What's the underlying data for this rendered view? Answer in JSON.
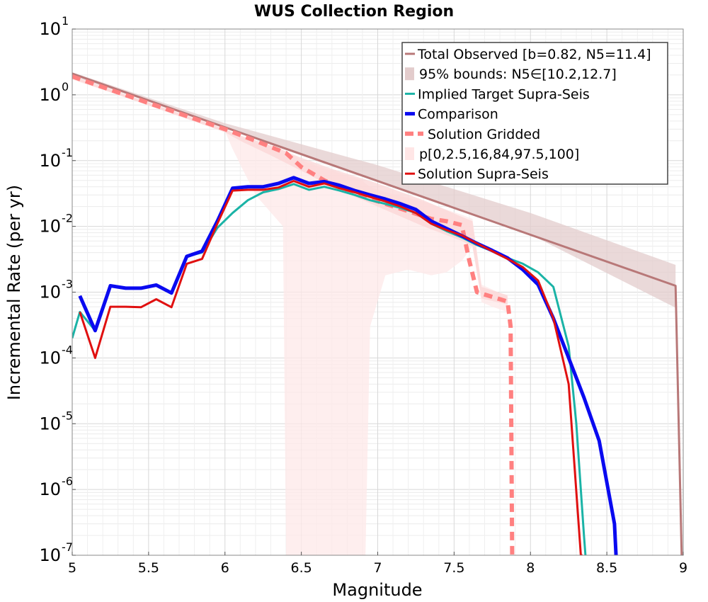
{
  "chart_data": {
    "type": "line",
    "title": "WUS Collection Region",
    "xlabel": "Magnitude",
    "ylabel": "Incremental Rate (per yr)",
    "xlim": [
      5,
      9
    ],
    "ylim": [
      1e-07,
      10
    ],
    "yscale": "log",
    "grid": true,
    "legend_position": "top-right",
    "x_ticks": [
      "5",
      "5.5",
      "6",
      "6.5",
      "7",
      "7.5",
      "8",
      "8.5",
      "9"
    ],
    "y_ticks": [
      {
        "base": "10",
        "exp": "-7",
        "value": 1e-07
      },
      {
        "base": "10",
        "exp": "-6",
        "value": 1e-06
      },
      {
        "base": "10",
        "exp": "-5",
        "value": 1e-05
      },
      {
        "base": "10",
        "exp": "-4",
        "value": 0.0001
      },
      {
        "base": "10",
        "exp": "-3",
        "value": 0.001
      },
      {
        "base": "10",
        "exp": "-2",
        "value": 0.01
      },
      {
        "base": "10",
        "exp": "-1",
        "value": 0.1
      },
      {
        "base": "10",
        "exp": "0",
        "value": 1
      },
      {
        "base": "10",
        "exp": "1",
        "value": 10
      }
    ],
    "legend": [
      {
        "label": "Total Observed [b=0.82, N5=11.4]",
        "style": "line",
        "color": "#b87878"
      },
      {
        "label": "95% bounds: N5∈[10.2,12.7]",
        "style": "band",
        "color": "#e3cccc"
      },
      {
        "label": "Implied Target Supra-Seis",
        "style": "line",
        "color": "#1ab3a6"
      },
      {
        "label": "Comparison",
        "style": "thick-line",
        "color": "#0a0af0"
      },
      {
        "label": "Solution Gridded",
        "style": "dashed",
        "color": "#ff8080"
      },
      {
        "label": "p[0,2.5,16,84,97.5,100]",
        "style": "band",
        "color": "#ffe6e6"
      },
      {
        "label": "Solution Supra-Seis",
        "style": "line",
        "color": "#e01010"
      }
    ],
    "bands": [
      {
        "name": "95% bounds",
        "color": "#e3cccc",
        "x": [
          5.0,
          6.0,
          7.0,
          8.0,
          8.95
        ],
        "upper": [
          2.2,
          0.37,
          0.085,
          0.016,
          0.0026
        ],
        "lower": [
          1.9,
          0.33,
          0.05,
          0.0075,
          0.00058
        ]
      },
      {
        "name": "p[0,2.5,16,84,97.5,100] outer",
        "color": "#fde8e8",
        "x": [
          5.0,
          5.5,
          6.0,
          6.05,
          6.2,
          6.38,
          6.4,
          6.5,
          6.7,
          6.9,
          6.92,
          6.95,
          7.05,
          7.2,
          7.35,
          7.45,
          7.55,
          7.62,
          7.68,
          7.75,
          7.85
        ],
        "upper": [
          1.95,
          0.78,
          0.32,
          0.25,
          0.19,
          0.15,
          0.14,
          0.1,
          0.07,
          0.05,
          0.045,
          0.04,
          0.033,
          0.027,
          0.022,
          0.018,
          0.015,
          0.013,
          0.0013,
          0.0011,
          0.00085
        ],
        "lower": [
          1.7,
          0.7,
          0.28,
          0.15,
          0.03,
          0.01,
          1e-07,
          1e-07,
          1e-07,
          1e-07,
          1e-07,
          0.0003,
          0.0018,
          0.0022,
          0.0018,
          0.002,
          0.003,
          0.005,
          0.0007,
          0.0006,
          0.0005
        ]
      },
      {
        "name": "p[16,84] inner",
        "color": "#fbd6d6",
        "x": [
          5.0,
          6.0,
          6.1,
          6.3,
          6.5,
          6.7,
          7.0,
          7.3,
          7.55,
          7.62,
          7.68,
          7.85
        ],
        "upper": [
          1.9,
          0.3,
          0.24,
          0.17,
          0.11,
          0.075,
          0.045,
          0.025,
          0.014,
          0.012,
          0.0012,
          0.0009
        ],
        "lower": [
          1.75,
          0.27,
          0.2,
          0.12,
          0.07,
          0.04,
          0.02,
          0.01,
          0.006,
          0.005,
          0.0008,
          0.00065
        ]
      }
    ],
    "series": [
      {
        "name": "Total Observed [b=0.82, N5=11.4]",
        "color": "#b87878",
        "width": 3,
        "dash": "",
        "x": [
          5.0,
          8.95,
          8.95,
          8.99
        ],
        "y": [
          2.1,
          0.00125,
          0.00125,
          1e-07
        ]
      },
      {
        "name": "Solution Gridded",
        "color": "#ff8080",
        "width": 6,
        "dash": "12,8",
        "x": [
          5.0,
          5.5,
          6.0,
          6.2,
          6.4,
          6.5,
          6.65,
          6.8,
          7.0,
          7.2,
          7.35,
          7.45,
          7.55,
          7.6,
          7.65,
          7.75,
          7.85,
          7.87,
          7.88
        ],
        "y": [
          1.9,
          0.75,
          0.3,
          0.2,
          0.13,
          0.08,
          0.05,
          0.035,
          0.024,
          0.017,
          0.013,
          0.012,
          0.0105,
          0.003,
          0.001,
          0.00085,
          0.00072,
          0.0003,
          1e-07
        ]
      },
      {
        "name": "Implied Target Supra-Seis",
        "color": "#1ab3a6",
        "width": 3,
        "dash": "",
        "x": [
          5.0,
          5.05,
          5.15,
          5.25,
          5.35,
          5.45,
          5.55,
          5.65,
          5.75,
          5.85,
          5.95,
          6.05,
          6.15,
          6.25,
          6.35,
          6.45,
          6.55,
          6.65,
          6.75,
          6.85,
          6.95,
          7.05,
          7.15,
          7.25,
          7.35,
          7.45,
          7.55,
          7.65,
          7.75,
          7.85,
          7.95,
          8.05,
          8.15,
          8.25,
          8.3,
          8.35,
          8.36
        ],
        "y": [
          0.0002,
          0.0005,
          0.00026,
          0.00125,
          0.00115,
          0.00115,
          0.00128,
          0.00097,
          0.0035,
          0.004,
          0.0095,
          0.016,
          0.025,
          0.033,
          0.037,
          0.044,
          0.036,
          0.04,
          0.035,
          0.03,
          0.025,
          0.022,
          0.019,
          0.016,
          0.011,
          0.0085,
          0.0068,
          0.0052,
          0.0042,
          0.0033,
          0.0027,
          0.002,
          0.0012,
          0.00015,
          1e-05,
          2e-07,
          1e-07
        ]
      },
      {
        "name": "Comparison",
        "color": "#0a0af0",
        "width": 5,
        "dash": "",
        "x": [
          5.05,
          5.15,
          5.25,
          5.35,
          5.45,
          5.55,
          5.65,
          5.75,
          5.85,
          5.95,
          6.05,
          6.15,
          6.25,
          6.35,
          6.45,
          6.55,
          6.65,
          6.75,
          6.85,
          6.95,
          7.05,
          7.15,
          7.25,
          7.35,
          7.45,
          7.55,
          7.65,
          7.75,
          7.85,
          7.95,
          8.05,
          8.15,
          8.25,
          8.35,
          8.45,
          8.55,
          8.56
        ],
        "y": [
          0.00088,
          0.00026,
          0.00125,
          0.00115,
          0.00115,
          0.00128,
          0.00097,
          0.0035,
          0.0042,
          0.012,
          0.038,
          0.04,
          0.04,
          0.045,
          0.055,
          0.045,
          0.048,
          0.042,
          0.035,
          0.03,
          0.026,
          0.022,
          0.018,
          0.012,
          0.0093,
          0.0072,
          0.0055,
          0.0043,
          0.0033,
          0.0022,
          0.0013,
          0.0004,
          0.0001,
          2.5e-05,
          5.5e-06,
          3e-07,
          1e-07
        ]
      },
      {
        "name": "Solution Supra-Seis",
        "color": "#e01010",
        "width": 3,
        "dash": "",
        "x": [
          5.05,
          5.15,
          5.25,
          5.35,
          5.45,
          5.55,
          5.65,
          5.75,
          5.85,
          5.95,
          6.05,
          6.15,
          6.25,
          6.35,
          6.45,
          6.55,
          6.65,
          6.75,
          6.85,
          6.95,
          7.05,
          7.15,
          7.25,
          7.35,
          7.45,
          7.55,
          7.65,
          7.75,
          7.85,
          7.95,
          8.05,
          8.15,
          8.25,
          8.33,
          8.34
        ],
        "y": [
          0.0005,
          0.0001,
          0.0006,
          0.0006,
          0.00059,
          0.00078,
          0.00059,
          0.0027,
          0.0032,
          0.011,
          0.035,
          0.036,
          0.036,
          0.039,
          0.049,
          0.04,
          0.045,
          0.038,
          0.033,
          0.028,
          0.024,
          0.02,
          0.016,
          0.011,
          0.0088,
          0.0073,
          0.0055,
          0.0042,
          0.0032,
          0.0024,
          0.0015,
          0.0004,
          4e-05,
          1e-07,
          1e-07
        ]
      }
    ]
  }
}
